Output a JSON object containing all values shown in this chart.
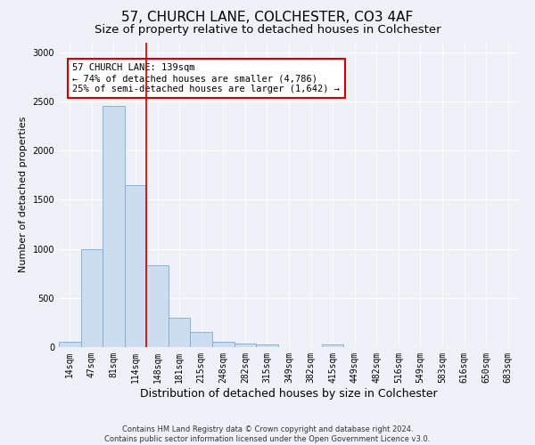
{
  "title": "57, CHURCH LANE, COLCHESTER, CO3 4AF",
  "subtitle": "Size of property relative to detached houses in Colchester",
  "xlabel": "Distribution of detached houses by size in Colchester",
  "ylabel": "Number of detached properties",
  "bin_labels": [
    "14sqm",
    "47sqm",
    "81sqm",
    "114sqm",
    "148sqm",
    "181sqm",
    "215sqm",
    "248sqm",
    "282sqm",
    "315sqm",
    "349sqm",
    "382sqm",
    "415sqm",
    "449sqm",
    "482sqm",
    "516sqm",
    "549sqm",
    "583sqm",
    "616sqm",
    "650sqm",
    "683sqm"
  ],
  "bar_heights": [
    55,
    1000,
    2450,
    1650,
    830,
    295,
    155,
    55,
    40,
    30,
    0,
    0,
    30,
    0,
    0,
    0,
    0,
    0,
    0,
    0,
    0
  ],
  "bar_color": "#ccddf0",
  "bar_edgecolor": "#7aaad0",
  "vline_color": "#cc0000",
  "vline_bin": 3,
  "annotation_text": "57 CHURCH LANE: 139sqm\n← 74% of detached houses are smaller (4,786)\n25% of semi-detached houses are larger (1,642) →",
  "annotation_box_edgecolor": "#cc0000",
  "annotation_box_facecolor": "#ffffff",
  "ylim": [
    0,
    3100
  ],
  "yticks": [
    0,
    500,
    1000,
    1500,
    2000,
    2500,
    3000
  ],
  "footer_line1": "Contains HM Land Registry data © Crown copyright and database right 2024.",
  "footer_line2": "Contains public sector information licensed under the Open Government Licence v3.0.",
  "background_color": "#eef2f8",
  "grid_color": "#ffffff",
  "title_fontsize": 11,
  "subtitle_fontsize": 9.5,
  "ylabel_fontsize": 8,
  "xlabel_fontsize": 9,
  "tick_fontsize": 7,
  "annotation_fontsize": 7.5,
  "footer_fontsize": 6
}
